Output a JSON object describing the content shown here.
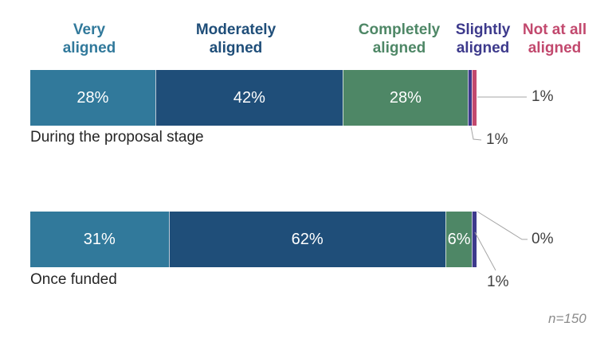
{
  "chart_data": {
    "type": "bar",
    "stacked": true,
    "orientation": "horizontal",
    "unit": "%",
    "xlim": [
      0,
      100
    ],
    "grid": false,
    "legend_position": "top",
    "categories": [
      "During the proposal stage",
      "Once funded"
    ],
    "series": [
      {
        "name": "Very aligned",
        "color": "#31799b",
        "values": [
          28,
          31
        ]
      },
      {
        "name": "Moderately aligned",
        "color": "#1f4e79",
        "values": [
          42,
          62
        ]
      },
      {
        "name": "Completely aligned",
        "color": "#4e8766",
        "values": [
          28,
          6
        ]
      },
      {
        "name": "Slightly aligned",
        "color": "#3d3a8c",
        "values": [
          1,
          1
        ]
      },
      {
        "name": "Not at all aligned",
        "color": "#c2496e",
        "values": [
          1,
          0
        ]
      }
    ],
    "sample_note": "n=150"
  },
  "legend": {
    "items": [
      {
        "line1": "Very",
        "line2": "aligned"
      },
      {
        "line1": "Moderately",
        "line2": "aligned"
      },
      {
        "line1": "Completely",
        "line2": "aligned"
      },
      {
        "line1": "Slightly",
        "line2": "aligned"
      },
      {
        "line1": "Not at all",
        "line2": "aligned"
      }
    ]
  },
  "callouts": {
    "proposal_not_at_all": "1%",
    "proposal_slightly": "1%",
    "funded_not_at_all": "0%",
    "funded_slightly": "1%"
  },
  "note": "n=150"
}
